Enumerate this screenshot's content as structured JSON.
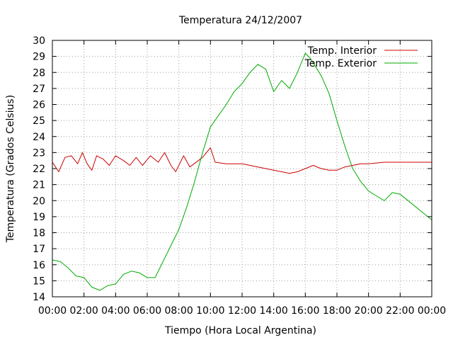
{
  "chart_data": {
    "type": "line",
    "title": "Temperatura 24/12/2007",
    "xlabel": "Tiempo (Hora Local Argentina)",
    "ylabel": "Temperatura (Grados Celsius)",
    "xlim": [
      0,
      24
    ],
    "ylim": [
      14,
      30
    ],
    "grid": true,
    "legend_position": "top-right",
    "x_ticks": [
      "00:00",
      "02:00",
      "04:00",
      "06:00",
      "08:00",
      "10:00",
      "12:00",
      "14:00",
      "16:00",
      "18:00",
      "20:00",
      "22:00",
      "00:00"
    ],
    "y_ticks": [
      "14",
      "15",
      "16",
      "17",
      "18",
      "19",
      "20",
      "21",
      "22",
      "23",
      "24",
      "25",
      "26",
      "27",
      "28",
      "29",
      "30"
    ],
    "series": [
      {
        "name": "Temp. Interior",
        "color": "#cc0000",
        "x": [
          0,
          0.4,
          0.8,
          1.2,
          1.6,
          1.9,
          2.2,
          2.5,
          2.8,
          3.2,
          3.6,
          4.0,
          4.5,
          4.9,
          5.3,
          5.7,
          6.2,
          6.7,
          7.1,
          7.5,
          7.8,
          8.3,
          8.7,
          9.5,
          10.0,
          10.3,
          11,
          12,
          12.5,
          13,
          13.5,
          14,
          14.5,
          15,
          15.5,
          16,
          16.5,
          17,
          17.5,
          18,
          18.5,
          19,
          19.5,
          20,
          21,
          22,
          23,
          24
        ],
        "y": [
          22.4,
          21.8,
          22.7,
          22.8,
          22.3,
          23.0,
          22.3,
          21.9,
          22.8,
          22.6,
          22.2,
          22.8,
          22.5,
          22.2,
          22.7,
          22.2,
          22.8,
          22.4,
          23.0,
          22.2,
          21.8,
          22.8,
          22.1,
          22.7,
          23.3,
          22.4,
          22.3,
          22.3,
          22.2,
          22.1,
          22.0,
          21.9,
          21.8,
          21.7,
          21.8,
          22.0,
          22.2,
          22.0,
          21.9,
          21.9,
          22.1,
          22.2,
          22.3,
          22.3,
          22.4,
          22.4,
          22.4,
          22.4
        ]
      },
      {
        "name": "Temp. Exterior",
        "color": "#00aa00",
        "x": [
          0,
          0.5,
          1.0,
          1.5,
          2.0,
          2.5,
          3.0,
          3.5,
          4.0,
          4.5,
          5.0,
          5.5,
          6.0,
          6.5,
          7.0,
          7.5,
          8.0,
          8.5,
          9.0,
          9.5,
          10.0,
          10.5,
          11.0,
          11.5,
          12.0,
          12.5,
          13.0,
          13.5,
          14.0,
          14.5,
          15.0,
          15.5,
          16.0,
          16.3,
          16.5,
          17.0,
          17.5,
          18.0,
          18.5,
          19.0,
          19.5,
          20.0,
          20.5,
          21.0,
          21.5,
          22.0,
          22.5,
          23.0,
          23.5,
          24.0
        ],
        "y": [
          16.3,
          16.2,
          15.8,
          15.3,
          15.2,
          14.6,
          14.4,
          14.7,
          14.8,
          15.4,
          15.6,
          15.5,
          15.2,
          15.2,
          16.2,
          17.2,
          18.2,
          19.6,
          21.2,
          23.0,
          24.6,
          25.3,
          26.0,
          26.8,
          27.3,
          28.0,
          28.5,
          28.2,
          26.8,
          27.5,
          27.0,
          28.0,
          29.2,
          28.9,
          28.6,
          27.8,
          26.7,
          25.0,
          23.4,
          22.0,
          21.2,
          20.6,
          20.3,
          20.0,
          20.5,
          20.4,
          20.0,
          19.6,
          19.2,
          18.8
        ]
      }
    ]
  }
}
